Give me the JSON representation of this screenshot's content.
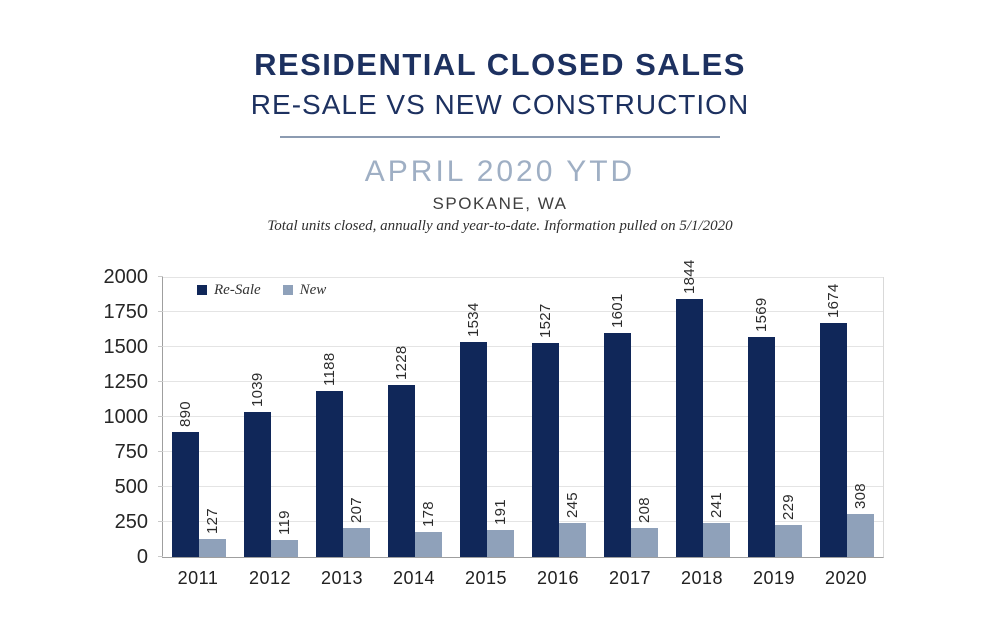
{
  "header": {
    "title": "RESIDENTIAL CLOSED SALES",
    "subtitle": "RE-SALE VS NEW CONSTRUCTION",
    "period": "APRIL 2020 YTD",
    "location": "SPOKANE, WA",
    "note": "Total units closed, annually and year-to-date.  Information pulled on 5/1/2020"
  },
  "colors": {
    "title_navy": "#1d3160",
    "period_blue": "#9fafc4",
    "resale": "#102759",
    "new": "#8fa1ba",
    "divider": "#8c9bb1",
    "gridline": "#e4e4e4",
    "axis_line": "#9f9f9f",
    "axis_label": "#262626"
  },
  "chart_data": {
    "type": "bar",
    "title": "Residential Closed Sales, Re-Sale vs New Construction, April 2020 YTD, Spokane WA",
    "categories": [
      "2011",
      "2012",
      "2013",
      "2014",
      "2015",
      "2016",
      "2017",
      "2018",
      "2019",
      "2020"
    ],
    "series": [
      {
        "name": "Re-Sale",
        "color_key": "resale",
        "values": [
          890,
          1039,
          1188,
          1228,
          1534,
          1527,
          1601,
          1844,
          1569,
          1674
        ]
      },
      {
        "name": "New",
        "color_key": "new",
        "values": [
          127,
          119,
          207,
          178,
          191,
          245,
          208,
          241,
          229,
          308
        ]
      }
    ],
    "xlabel": "",
    "ylabel": "",
    "ylim": [
      0,
      2000
    ],
    "yticks": [
      0,
      250,
      500,
      750,
      1000,
      1250,
      1500,
      1750,
      2000
    ],
    "grid": true,
    "legend_position": "top-left-inside",
    "value_labels": "rotated-90"
  }
}
